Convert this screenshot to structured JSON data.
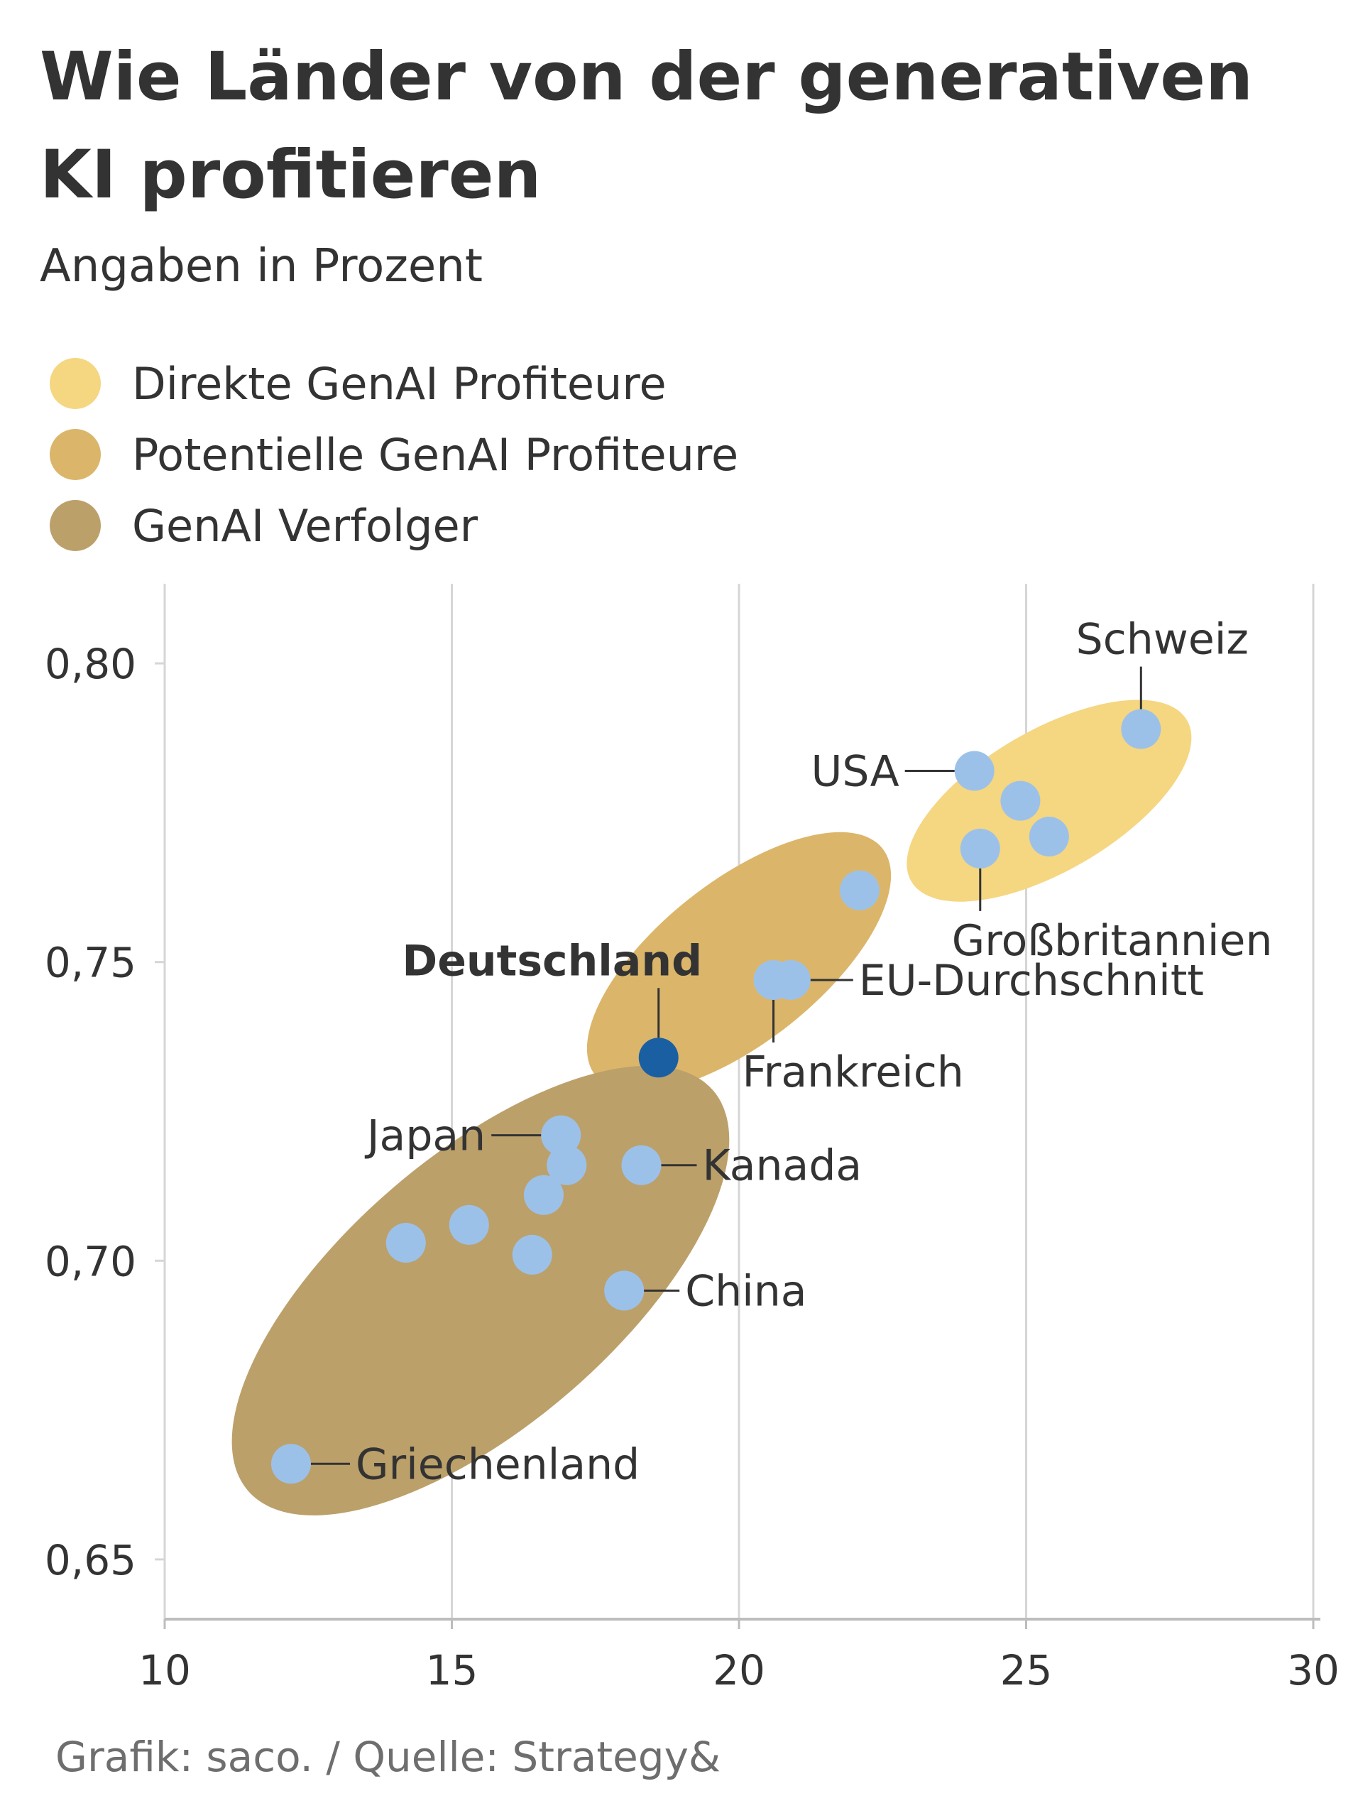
{
  "title": "Wie Länder von der generativen KI profitieren",
  "subtitle": "Angaben in Prozent",
  "source": "Grafik: saco. / Quelle: Strategy&",
  "colors": {
    "direct": "#f5d681",
    "potential": "#dbb66a",
    "follower": "#bca06a",
    "point": "#9cc1e9",
    "highlight": "#1b5fa3",
    "grid": "#d6d6d6",
    "text": "#333333",
    "source": "#6e6e6e"
  },
  "legend": [
    {
      "label": "Direkte GenAI Profiteure",
      "color": "#f5d681"
    },
    {
      "label": "Potentielle GenAI Profiteure",
      "color": "#dbb66a"
    },
    {
      "label": "GenAI Verfolger",
      "color": "#bca06a"
    }
  ],
  "chart_data": {
    "type": "scatter",
    "title": "Wie Länder von der generativen KI profitieren",
    "subtitle": "Angaben in Prozent",
    "xlim": [
      10,
      30
    ],
    "ylim": [
      0.64,
      0.81
    ],
    "x_ticks": [
      10,
      15,
      20,
      25,
      30
    ],
    "x_tick_labels": [
      "10",
      "15",
      "20",
      "25",
      "30"
    ],
    "y_ticks": [
      0.65,
      0.7,
      0.75,
      0.8
    ],
    "y_tick_labels": [
      "0,65",
      "0,70",
      "0,75",
      "0,80"
    ],
    "grid": "vertical",
    "legend_position": "top-left",
    "clusters": [
      {
        "name": "Direkte GenAI Profiteure",
        "color": "#f5d681",
        "center": [
          25.4,
          0.777
        ],
        "span_x": [
          23,
          27.8
        ],
        "span_y": [
          0.763,
          0.79
        ]
      },
      {
        "name": "Potentielle GenAI Profiteure",
        "color": "#dbb66a",
        "center": [
          20,
          0.75
        ],
        "span_x": [
          17.9,
          22.9
        ],
        "span_y": [
          0.73,
          0.768
        ]
      },
      {
        "name": "GenAI Verfolger",
        "color": "#bca06a",
        "center": [
          15.5,
          0.695
        ],
        "span_x": [
          11.3,
          19.4
        ],
        "span_y": [
          0.655,
          0.722
        ]
      }
    ],
    "points": [
      {
        "x": 27.0,
        "y": 0.789,
        "label": "Schweiz",
        "cluster": "Direkte GenAI Profiteure"
      },
      {
        "x": 24.1,
        "y": 0.782,
        "label": "USA",
        "cluster": "Direkte GenAI Profiteure"
      },
      {
        "x": 24.9,
        "y": 0.777,
        "label": "",
        "cluster": "Direkte GenAI Profiteure"
      },
      {
        "x": 25.4,
        "y": 0.771,
        "label": "",
        "cluster": "Direkte GenAI Profiteure"
      },
      {
        "x": 24.2,
        "y": 0.769,
        "label": "Großbritannien",
        "cluster": "Direkte GenAI Profiteure"
      },
      {
        "x": 22.1,
        "y": 0.762,
        "label": "",
        "cluster": "Potentielle GenAI Profiteure"
      },
      {
        "x": 20.9,
        "y": 0.747,
        "label": "EU-Durchschnitt",
        "cluster": "Potentielle GenAI Profiteure"
      },
      {
        "x": 20.6,
        "y": 0.747,
        "label": "Frankreich",
        "cluster": "Potentielle GenAI Profiteure"
      },
      {
        "x": 18.6,
        "y": 0.734,
        "label": "Deutschland",
        "cluster": "Potentielle GenAI Profiteure",
        "highlight": true
      },
      {
        "x": 16.9,
        "y": 0.721,
        "label": "Japan",
        "cluster": "GenAI Verfolger"
      },
      {
        "x": 17.0,
        "y": 0.716,
        "label": "",
        "cluster": "GenAI Verfolger"
      },
      {
        "x": 18.3,
        "y": 0.716,
        "label": "Kanada",
        "cluster": "GenAI Verfolger"
      },
      {
        "x": 16.6,
        "y": 0.711,
        "label": "",
        "cluster": "GenAI Verfolger"
      },
      {
        "x": 15.3,
        "y": 0.706,
        "label": "",
        "cluster": "GenAI Verfolger"
      },
      {
        "x": 14.2,
        "y": 0.703,
        "label": "",
        "cluster": "GenAI Verfolger"
      },
      {
        "x": 16.4,
        "y": 0.701,
        "label": "",
        "cluster": "GenAI Verfolger"
      },
      {
        "x": 18.0,
        "y": 0.695,
        "label": "China",
        "cluster": "GenAI Verfolger"
      },
      {
        "x": 12.2,
        "y": 0.666,
        "label": "Griechenland",
        "cluster": "GenAI Verfolger"
      }
    ]
  }
}
